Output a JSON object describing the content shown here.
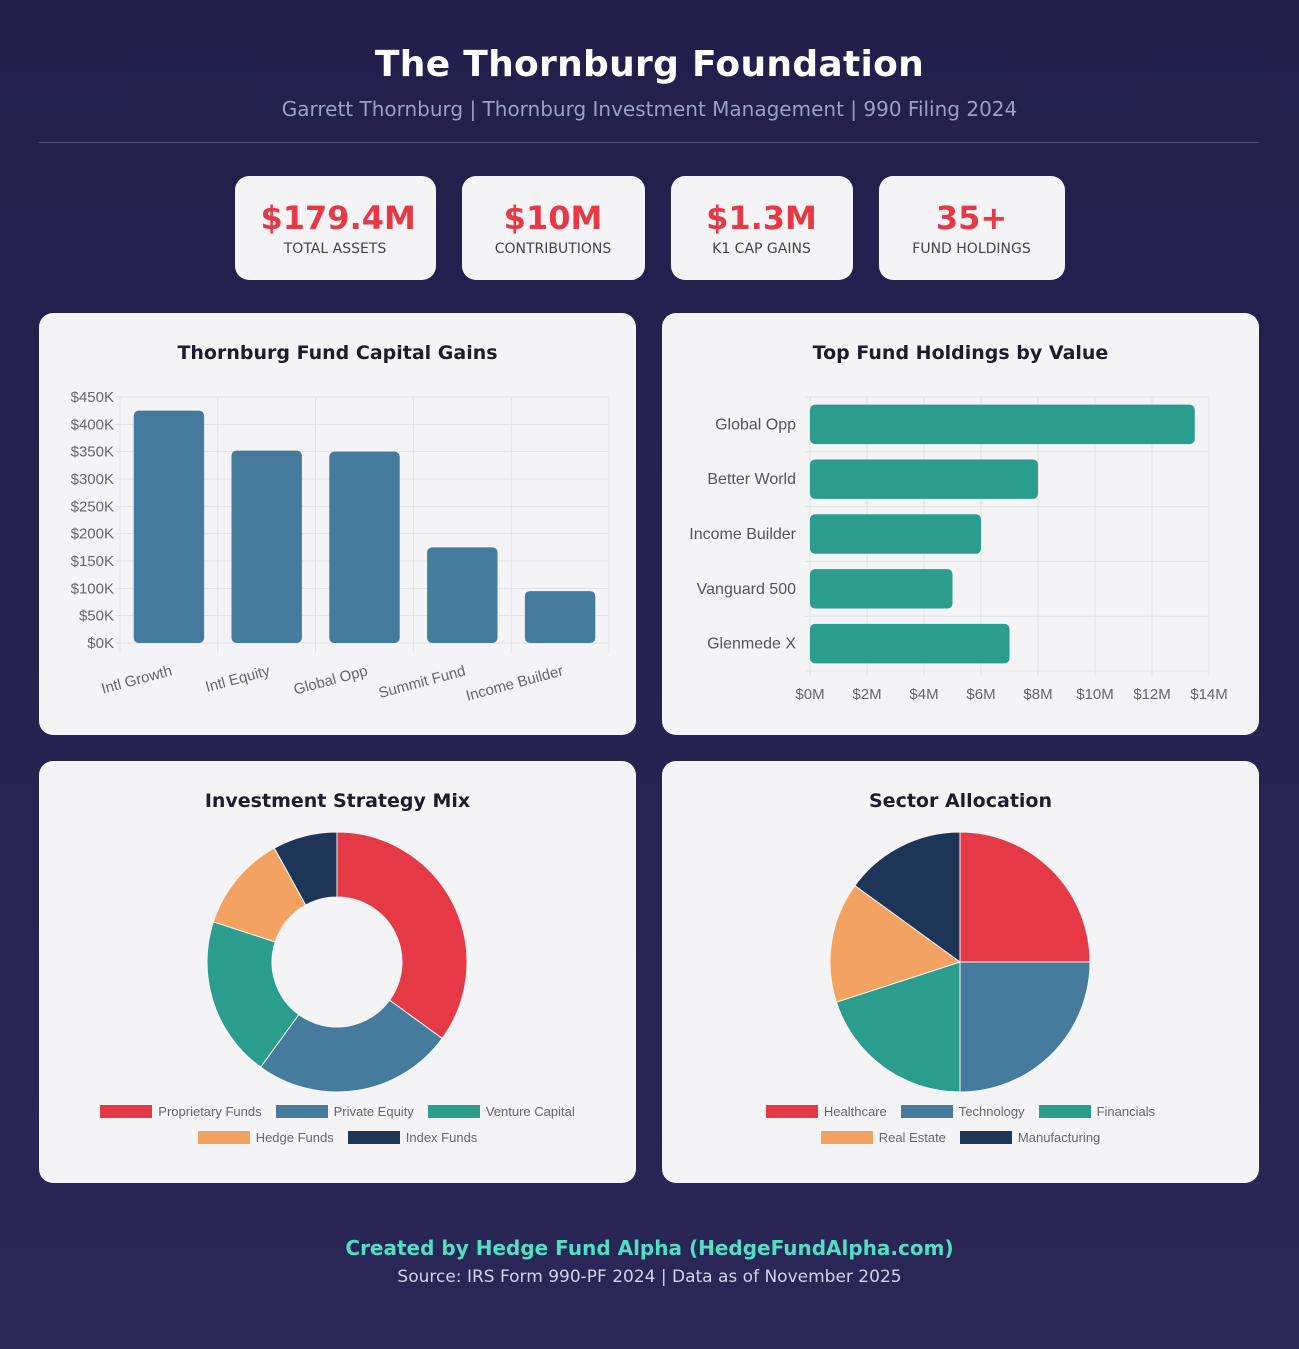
{
  "header": {
    "title": "The Thornburg Foundation",
    "subtitle": "Garrett Thornburg | Thornburg Investment Management | 990 Filing 2024"
  },
  "stats": [
    {
      "value": "$179.4M",
      "label": "TOTAL ASSETS"
    },
    {
      "value": "$10M",
      "label": "CONTRIBUTIONS"
    },
    {
      "value": "$1.3M",
      "label": "K1 CAP GAINS"
    },
    {
      "value": "35+",
      "label": "FUND HOLDINGS"
    }
  ],
  "colors": {
    "red": "#e63946",
    "blue": "#457b9d",
    "teal": "#2a9d8f",
    "orange": "#f4a261",
    "navy": "#1d3557"
  },
  "chart_data": [
    {
      "type": "bar",
      "title": "Thornburg Fund Capital Gains",
      "categories": [
        "Intl Growth",
        "Intl Equity",
        "Global Opp",
        "Summit Fund",
        "Income Builder"
      ],
      "values": [
        425000,
        352000,
        350000,
        175000,
        95000
      ],
      "ylim": [
        0,
        450000
      ],
      "yticks": [
        "$0K",
        "$50K",
        "$100K",
        "$150K",
        "$200K",
        "$250K",
        "$300K",
        "$350K",
        "$400K",
        "$450K"
      ],
      "color": "#457b9d",
      "grid": true
    },
    {
      "type": "bar",
      "orientation": "horizontal",
      "title": "Top Fund Holdings by Value",
      "categories": [
        "Global Opp",
        "Better World",
        "Income Builder",
        "Vanguard 500",
        "Glenmede X"
      ],
      "values": [
        13500000,
        8000000,
        6000000,
        5000000,
        7000000
      ],
      "xlim": [
        0,
        14000000
      ],
      "xticks": [
        "$0M",
        "$2M",
        "$4M",
        "$6M",
        "$8M",
        "$10M",
        "$12M",
        "$14M"
      ],
      "color": "#2a9d8f",
      "grid": true
    },
    {
      "type": "pie",
      "variant": "doughnut",
      "title": "Investment Strategy Mix",
      "labels": [
        "Proprietary Funds",
        "Private Equity",
        "Venture Capital",
        "Hedge Funds",
        "Index Funds"
      ],
      "values": [
        35,
        25,
        20,
        12,
        8
      ],
      "colors": [
        "#e63946",
        "#457b9d",
        "#2a9d8f",
        "#f4a261",
        "#1d3557"
      ],
      "legend": "bottom"
    },
    {
      "type": "pie",
      "title": "Sector Allocation",
      "labels": [
        "Healthcare",
        "Technology",
        "Financials",
        "Real Estate",
        "Manufacturing"
      ],
      "values": [
        25,
        25,
        20,
        15,
        15
      ],
      "colors": [
        "#e63946",
        "#457b9d",
        "#2a9d8f",
        "#f4a261",
        "#1d3557"
      ],
      "legend": "bottom"
    }
  ],
  "footer": {
    "credit": "Created by Hedge Fund Alpha (HedgeFundAlpha.com)",
    "source": "Source: IRS Form 990-PF 2024 | Data as of November 2025"
  }
}
